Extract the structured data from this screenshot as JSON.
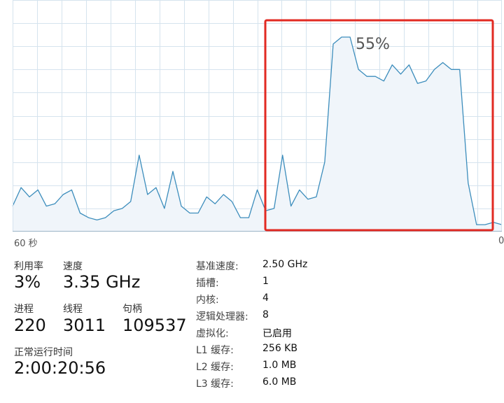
{
  "graph": {
    "axis_left_label": "60 秒",
    "axis_right_label": "0",
    "highlight_label": "55%",
    "line_color": "#3c8dbc",
    "fill_color": "#f0f5fa",
    "grid_color": "#d5e3ee",
    "highlight_color": "#e22a22"
  },
  "chart_data": {
    "type": "area",
    "ylim": [
      0,
      100
    ],
    "series": [
      {
        "values": [
          11,
          19,
          15,
          18,
          11,
          12,
          16,
          18,
          8,
          6,
          5,
          6,
          9,
          10,
          13,
          33,
          16,
          19,
          10,
          26,
          11,
          8,
          8,
          15,
          12,
          16,
          13,
          6,
          6,
          18,
          9,
          10,
          33,
          11,
          18,
          14,
          15,
          30,
          81,
          84,
          84,
          70,
          67,
          67,
          65,
          72,
          68,
          72,
          64,
          65,
          70,
          73,
          70,
          70,
          21,
          3,
          3,
          4,
          3
        ]
      }
    ]
  },
  "stats": {
    "utilization_label": "利用率",
    "utilization_value": "3%",
    "speed_label": "速度",
    "speed_value": "3.35 GHz",
    "processes_label": "进程",
    "processes_value": "220",
    "threads_label": "线程",
    "threads_value": "3011",
    "handles_label": "句柄",
    "handles_value": "109537",
    "uptime_label": "正常运行时间",
    "uptime_value": "2:00:20:56"
  },
  "info": [
    {
      "label": "基准速度:",
      "value": "2.50 GHz"
    },
    {
      "label": "插槽:",
      "value": "1"
    },
    {
      "label": "内核:",
      "value": "4"
    },
    {
      "label": "逻辑处理器:",
      "value": "8"
    },
    {
      "label": "虚拟化:",
      "value": "已启用"
    },
    {
      "label": "L1 缓存:",
      "value": "256 KB"
    },
    {
      "label": "L2 缓存:",
      "value": "1.0 MB"
    },
    {
      "label": "L3 缓存:",
      "value": "6.0 MB"
    }
  ]
}
